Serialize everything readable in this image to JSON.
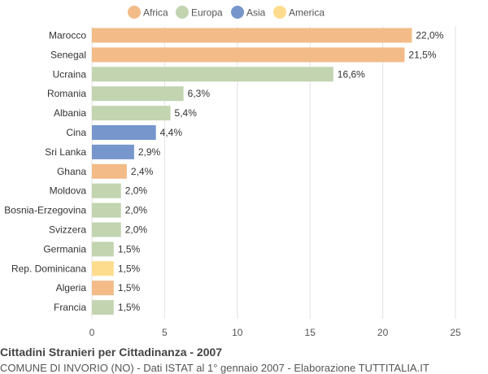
{
  "colors": {
    "Africa": "#f2bb88",
    "Europa": "#c2d4b0",
    "Asia": "#7696cc",
    "America": "#fedc8e"
  },
  "chart_data": {
    "type": "bar",
    "orientation": "horizontal",
    "categories": [
      "Marocco",
      "Senegal",
      "Ucraina",
      "Romania",
      "Albania",
      "Cina",
      "Sri Lanka",
      "Ghana",
      "Moldova",
      "Bosnia-Erzegovina",
      "Svizzera",
      "Germania",
      "Rep. Dominicana",
      "Algeria",
      "Francia"
    ],
    "values": [
      22.0,
      21.5,
      16.6,
      6.3,
      5.4,
      4.4,
      2.9,
      2.4,
      2.0,
      2.0,
      2.0,
      1.5,
      1.5,
      1.5,
      1.5
    ],
    "value_labels": [
      "22,0%",
      "21,5%",
      "16,6%",
      "6,3%",
      "5,4%",
      "4,4%",
      "2,9%",
      "2,4%",
      "2,0%",
      "2,0%",
      "2,0%",
      "1,5%",
      "1,5%",
      "1,5%",
      "1,5%"
    ],
    "groups": [
      "Africa",
      "Africa",
      "Europa",
      "Europa",
      "Europa",
      "Asia",
      "Asia",
      "Africa",
      "Europa",
      "Europa",
      "Europa",
      "Europa",
      "America",
      "Africa",
      "Europa"
    ],
    "legend": [
      "Africa",
      "Europa",
      "Asia",
      "America"
    ],
    "legend_position": "top-center",
    "xlim": [
      0,
      25
    ],
    "xticks": [
      0,
      5,
      10,
      15,
      20,
      25
    ],
    "grid": "vertical"
  },
  "footer": {
    "title": "Cittadini Stranieri per Cittadinanza - 2007",
    "subtitle": "COMUNE DI INVORIO (NO) - Dati ISTAT al 1° gennaio 2007 - Elaborazione TUTTITALIA.IT"
  }
}
